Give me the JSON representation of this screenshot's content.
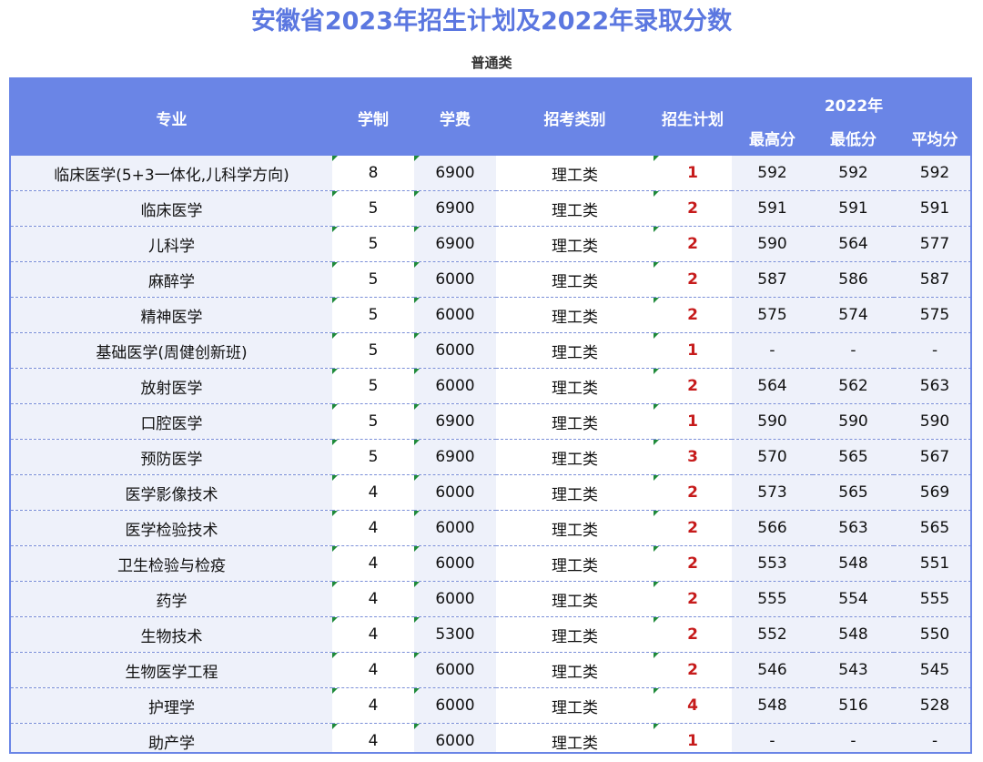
{
  "title": "安徽省2023年招生计划及2022年录取分数",
  "subtitle": "普通类",
  "headers": {
    "major": "专业",
    "length": "学制",
    "fee": "学费",
    "category": "招考类别",
    "plan": "招生计划",
    "year": "2022年",
    "max": "最高分",
    "min": "最低分",
    "avg": "平均分"
  },
  "colors": {
    "header_bg": "#6a85e6",
    "title": "#5b77e0",
    "plan_text": "#c61b1b"
  },
  "rows": [
    {
      "major": "临床医学(5+3一体化,儿科学方向)",
      "length": "8",
      "fee": "6900",
      "category": "理工类",
      "plan": "1",
      "max": "592",
      "min": "592",
      "avg": "592"
    },
    {
      "major": "临床医学",
      "length": "5",
      "fee": "6900",
      "category": "理工类",
      "plan": "2",
      "max": "591",
      "min": "591",
      "avg": "591"
    },
    {
      "major": "儿科学",
      "length": "5",
      "fee": "6900",
      "category": "理工类",
      "plan": "2",
      "max": "590",
      "min": "564",
      "avg": "577"
    },
    {
      "major": "麻醉学",
      "length": "5",
      "fee": "6000",
      "category": "理工类",
      "plan": "2",
      "max": "587",
      "min": "586",
      "avg": "587"
    },
    {
      "major": "精神医学",
      "length": "5",
      "fee": "6000",
      "category": "理工类",
      "plan": "2",
      "max": "575",
      "min": "574",
      "avg": "575"
    },
    {
      "major": "基础医学(周健创新班)",
      "length": "5",
      "fee": "6000",
      "category": "理工类",
      "plan": "1",
      "max": "-",
      "min": "-",
      "avg": "-"
    },
    {
      "major": "放射医学",
      "length": "5",
      "fee": "6000",
      "category": "理工类",
      "plan": "2",
      "max": "564",
      "min": "562",
      "avg": "563"
    },
    {
      "major": "口腔医学",
      "length": "5",
      "fee": "6900",
      "category": "理工类",
      "plan": "1",
      "max": "590",
      "min": "590",
      "avg": "590"
    },
    {
      "major": "预防医学",
      "length": "5",
      "fee": "6900",
      "category": "理工类",
      "plan": "3",
      "max": "570",
      "min": "565",
      "avg": "567"
    },
    {
      "major": "医学影像技术",
      "length": "4",
      "fee": "6000",
      "category": "理工类",
      "plan": "2",
      "max": "573",
      "min": "565",
      "avg": "569"
    },
    {
      "major": "医学检验技术",
      "length": "4",
      "fee": "6000",
      "category": "理工类",
      "plan": "2",
      "max": "566",
      "min": "563",
      "avg": "565"
    },
    {
      "major": "卫生检验与检疫",
      "length": "4",
      "fee": "6000",
      "category": "理工类",
      "plan": "2",
      "max": "553",
      "min": "548",
      "avg": "551"
    },
    {
      "major": "药学",
      "length": "4",
      "fee": "6000",
      "category": "理工类",
      "plan": "2",
      "max": "555",
      "min": "554",
      "avg": "555"
    },
    {
      "major": "生物技术",
      "length": "4",
      "fee": "5300",
      "category": "理工类",
      "plan": "2",
      "max": "552",
      "min": "548",
      "avg": "550"
    },
    {
      "major": "生物医学工程",
      "length": "4",
      "fee": "6000",
      "category": "理工类",
      "plan": "2",
      "max": "546",
      "min": "543",
      "avg": "545"
    },
    {
      "major": "护理学",
      "length": "4",
      "fee": "6000",
      "category": "理工类",
      "plan": "4",
      "max": "548",
      "min": "516",
      "avg": "528"
    },
    {
      "major": "助产学",
      "length": "4",
      "fee": "6000",
      "category": "理工类",
      "plan": "1",
      "max": "-",
      "min": "-",
      "avg": "-"
    }
  ]
}
